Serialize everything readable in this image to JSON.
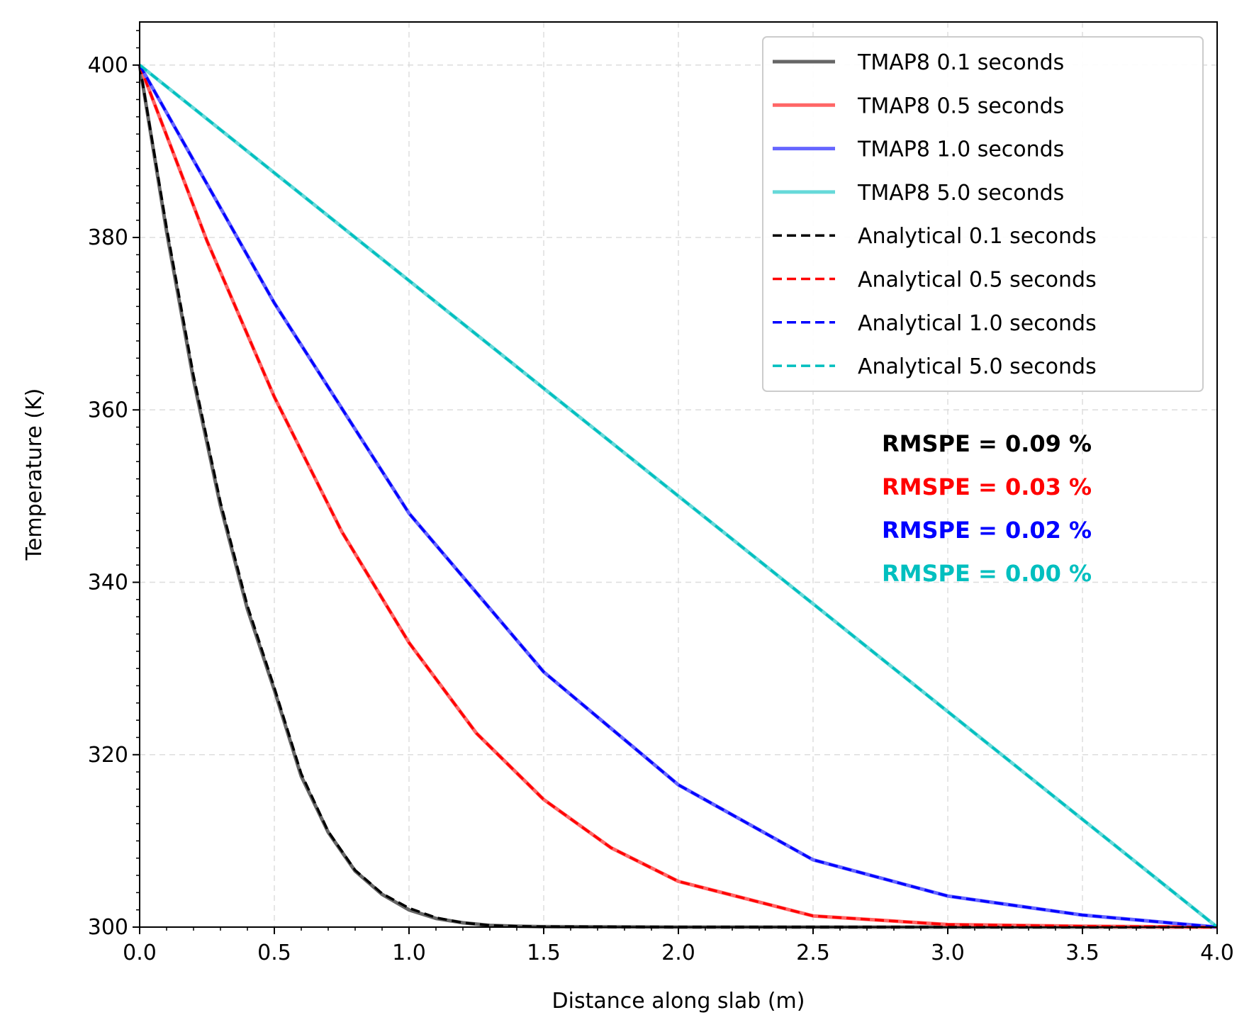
{
  "chart_data": {
    "type": "line",
    "xlabel": "Distance along slab (m)",
    "ylabel": "Temperature (K)",
    "xlim": [
      0,
      4
    ],
    "ylim": [
      300,
      405
    ],
    "xticks": [
      "0.0",
      "0.5",
      "1.0",
      "1.5",
      "2.0",
      "2.5",
      "3.0",
      "3.5",
      "4.0"
    ],
    "yticks": [
      "300",
      "320",
      "340",
      "360",
      "380",
      "400"
    ],
    "grid": true,
    "legend_position": "top-right",
    "series": [
      {
        "name": "TMAP8 0.1 seconds",
        "color": "#666666",
        "style": "solid",
        "x": [
          0,
          0.1,
          0.2,
          0.3,
          0.4,
          0.5,
          0.6,
          0.7,
          0.8,
          0.9,
          1.0,
          1.1,
          1.2,
          1.3,
          1.4,
          1.5,
          2.0,
          2.5,
          3.0,
          3.5,
          4.0
        ],
        "y": [
          400,
          380.7,
          363.5,
          348.9,
          336.9,
          327.5,
          317.5,
          311.0,
          306.5,
          303.8,
          302.0,
          301.0,
          300.5,
          300.2,
          300.1,
          300.05,
          300,
          300,
          300,
          300,
          300
        ]
      },
      {
        "name": "TMAP8 0.5 seconds",
        "color": "#ff6666",
        "style": "solid",
        "x": [
          0,
          0.25,
          0.5,
          0.75,
          1.0,
          1.25,
          1.5,
          1.75,
          2.0,
          2.5,
          3.0,
          3.5,
          4.0
        ],
        "y": [
          400,
          379.6,
          361.5,
          345.9,
          333.0,
          322.5,
          314.8,
          309.2,
          305.3,
          301.3,
          300.3,
          300.1,
          300
        ]
      },
      {
        "name": "TMAP8 1.0 seconds",
        "color": "#6666ff",
        "style": "solid",
        "x": [
          0,
          0.5,
          1.0,
          1.5,
          2.0,
          2.5,
          3.0,
          3.5,
          4.0
        ],
        "y": [
          400,
          372.4,
          348.0,
          329.6,
          316.5,
          307.8,
          303.6,
          301.4,
          300
        ]
      },
      {
        "name": "TMAP8 5.0 seconds",
        "color": "#66d9d9",
        "style": "solid",
        "x": [
          0,
          4.0
        ],
        "y": [
          400,
          300
        ]
      },
      {
        "name": "Analytical 0.1 seconds",
        "color": "#000000",
        "style": "dashed",
        "x": [
          0,
          0.1,
          0.2,
          0.3,
          0.4,
          0.5,
          0.6,
          0.7,
          0.8,
          0.9,
          1.0,
          1.1,
          1.2,
          1.3,
          1.4,
          1.5,
          2.0,
          2.5,
          3.0,
          3.5,
          4.0
        ],
        "y": [
          400,
          381.2,
          364.0,
          349.3,
          337.3,
          327.8,
          317.8,
          311.1,
          306.6,
          303.9,
          302.2,
          301.1,
          300.5,
          300.2,
          300.1,
          300.05,
          300,
          300,
          300,
          300,
          300
        ]
      },
      {
        "name": "Analytical 0.5 seconds",
        "color": "#ff0000",
        "style": "dashed",
        "x": [
          0,
          0.25,
          0.5,
          0.75,
          1.0,
          1.25,
          1.5,
          1.75,
          2.0,
          2.5,
          3.0,
          3.5,
          4.0
        ],
        "y": [
          400,
          379.6,
          361.5,
          345.9,
          333.0,
          322.5,
          314.8,
          309.2,
          305.3,
          301.3,
          300.3,
          300.1,
          300
        ]
      },
      {
        "name": "Analytical 1.0 seconds",
        "color": "#0000ff",
        "style": "dashed",
        "x": [
          0,
          0.5,
          1.0,
          1.5,
          2.0,
          2.5,
          3.0,
          3.5,
          4.0
        ],
        "y": [
          400,
          372.4,
          348.0,
          329.6,
          316.5,
          307.8,
          303.6,
          301.4,
          300
        ]
      },
      {
        "name": "Analytical 5.0 seconds",
        "color": "#00bfbf",
        "style": "dashed",
        "x": [
          0,
          4.0
        ],
        "y": [
          400,
          300
        ]
      }
    ],
    "annotations": [
      {
        "text": "RMSPE = 0.09 %",
        "color": "#000000"
      },
      {
        "text": "RMSPE = 0.03 %",
        "color": "#ff0000"
      },
      {
        "text": "RMSPE = 0.02 %",
        "color": "#0000ff"
      },
      {
        "text": "RMSPE = 0.00 %",
        "color": "#00bfbf"
      }
    ]
  }
}
